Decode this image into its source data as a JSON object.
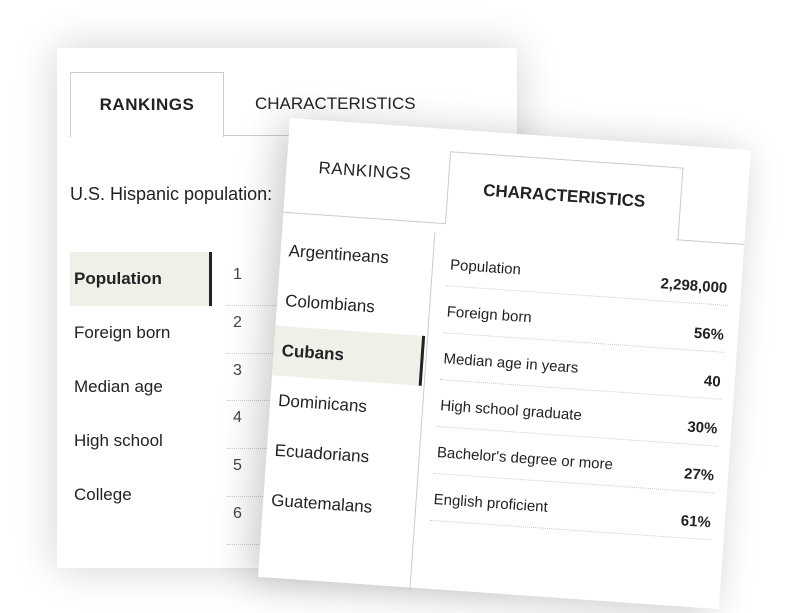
{
  "back_card": {
    "tabs": [
      {
        "label": "RANKINGS",
        "active": true
      },
      {
        "label": "CHARACTERISTICS",
        "active": false
      }
    ],
    "subtitle": "U.S. Hispanic population:",
    "sidebar": [
      {
        "label": "Population",
        "selected": true
      },
      {
        "label": "Foreign born",
        "selected": false
      },
      {
        "label": "Median age",
        "selected": false
      },
      {
        "label": "High school",
        "selected": false
      },
      {
        "label": "College",
        "selected": false
      }
    ],
    "ranks": [
      "1",
      "2",
      "3",
      "4",
      "5",
      "6"
    ]
  },
  "front_card": {
    "tabs": [
      {
        "label": "RANKINGS",
        "active": false
      },
      {
        "label": "CHARACTERISTICS",
        "active": true
      }
    ],
    "groups": [
      {
        "label": "Argentineans",
        "selected": false
      },
      {
        "label": "Colombians",
        "selected": false
      },
      {
        "label": "Cubans",
        "selected": true
      },
      {
        "label": "Dominicans",
        "selected": false
      },
      {
        "label": "Ecuadorians",
        "selected": false
      },
      {
        "label": "Guatemalans",
        "selected": false
      }
    ],
    "characteristics": [
      {
        "label": "Population",
        "value": "2,298,000"
      },
      {
        "label": "Foreign born",
        "value": "56%"
      },
      {
        "label": "Median age in years",
        "value": "40"
      },
      {
        "label": "High school graduate",
        "value": "30%"
      },
      {
        "label": "Bachelor's degree or more",
        "value": "27%"
      },
      {
        "label": "English proficient",
        "value": "61%"
      }
    ]
  },
  "colors": {
    "selected_bg": "#f0efe8",
    "selected_border": "#222222"
  }
}
